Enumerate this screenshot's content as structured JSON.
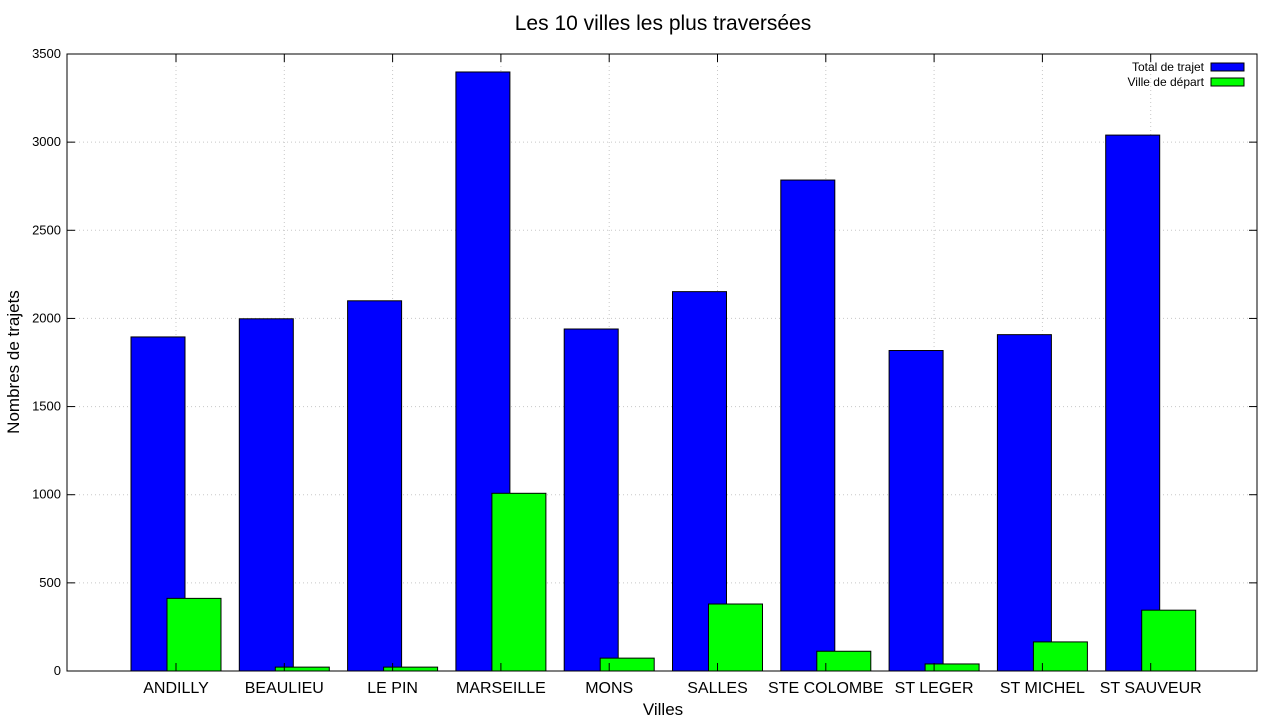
{
  "chart_data": {
    "type": "bar",
    "title": "Les 10 villes les plus traversées",
    "xlabel": "Villes",
    "ylabel": "Nombres de trajets",
    "categories": [
      "ANDILLY",
      "BEAULIEU",
      "LE PIN",
      "MARSEILLE",
      "MONS",
      "SALLES",
      "STE COLOMBE",
      "ST LEGER",
      "ST MICHEL",
      "ST SAUVEUR"
    ],
    "series": [
      {
        "name": "Total de trajet",
        "color": "#0000ff",
        "values": [
          1895,
          1998,
          2100,
          3398,
          1940,
          2152,
          2785,
          1818,
          1908,
          3040
        ]
      },
      {
        "name": "Ville de départ",
        "color": "#00ff00",
        "values": [
          412,
          22,
          22,
          1008,
          73,
          380,
          112,
          40,
          165,
          345
        ]
      }
    ],
    "ylim": [
      0,
      3500
    ],
    "yticks": [
      "0",
      "500",
      "1000",
      "1500",
      "2000",
      "2500",
      "3000",
      "3500"
    ],
    "grid": true,
    "legend_position": "top-right"
  }
}
